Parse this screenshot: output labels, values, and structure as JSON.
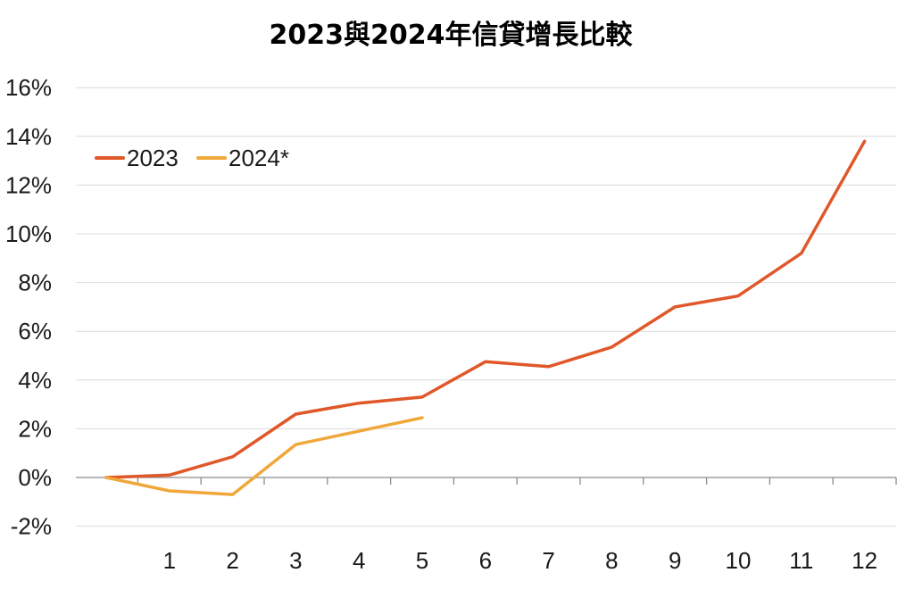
{
  "chart_data": {
    "type": "line",
    "title": "2023與2024年信貸增長比較",
    "x": [
      0,
      1,
      2,
      3,
      4,
      5,
      6,
      7,
      8,
      9,
      10,
      11,
      12
    ],
    "x_tick_labels": [
      "1",
      "2",
      "3",
      "4",
      "5",
      "6",
      "7",
      "8",
      "9",
      "10",
      "11",
      "12"
    ],
    "y_tick_labels": [
      "16%",
      "14%",
      "12%",
      "10%",
      "8%",
      "6%",
      "4%",
      "2%",
      "0%",
      "-2%"
    ],
    "y_ticks": [
      16,
      14,
      12,
      10,
      8,
      6,
      4,
      2,
      0,
      -2
    ],
    "ylim": [
      -2,
      16
    ],
    "xlim": [
      0,
      12
    ],
    "grid": true,
    "legend_position": "top-left",
    "series": [
      {
        "name": "2023",
        "color": "#e0582a",
        "x": [
          0,
          1,
          2,
          3,
          4,
          5,
          6,
          7,
          8,
          9,
          10,
          11,
          12
        ],
        "values": [
          0,
          0.1,
          0.85,
          2.6,
          3.05,
          3.3,
          4.75,
          4.55,
          5.35,
          7.0,
          7.45,
          9.2,
          13.8
        ]
      },
      {
        "name": "2024*",
        "color": "#f0a83a",
        "x": [
          0,
          1,
          2,
          3,
          4,
          5
        ],
        "values": [
          0,
          -0.55,
          -0.7,
          1.35,
          1.9,
          2.45
        ]
      }
    ]
  }
}
